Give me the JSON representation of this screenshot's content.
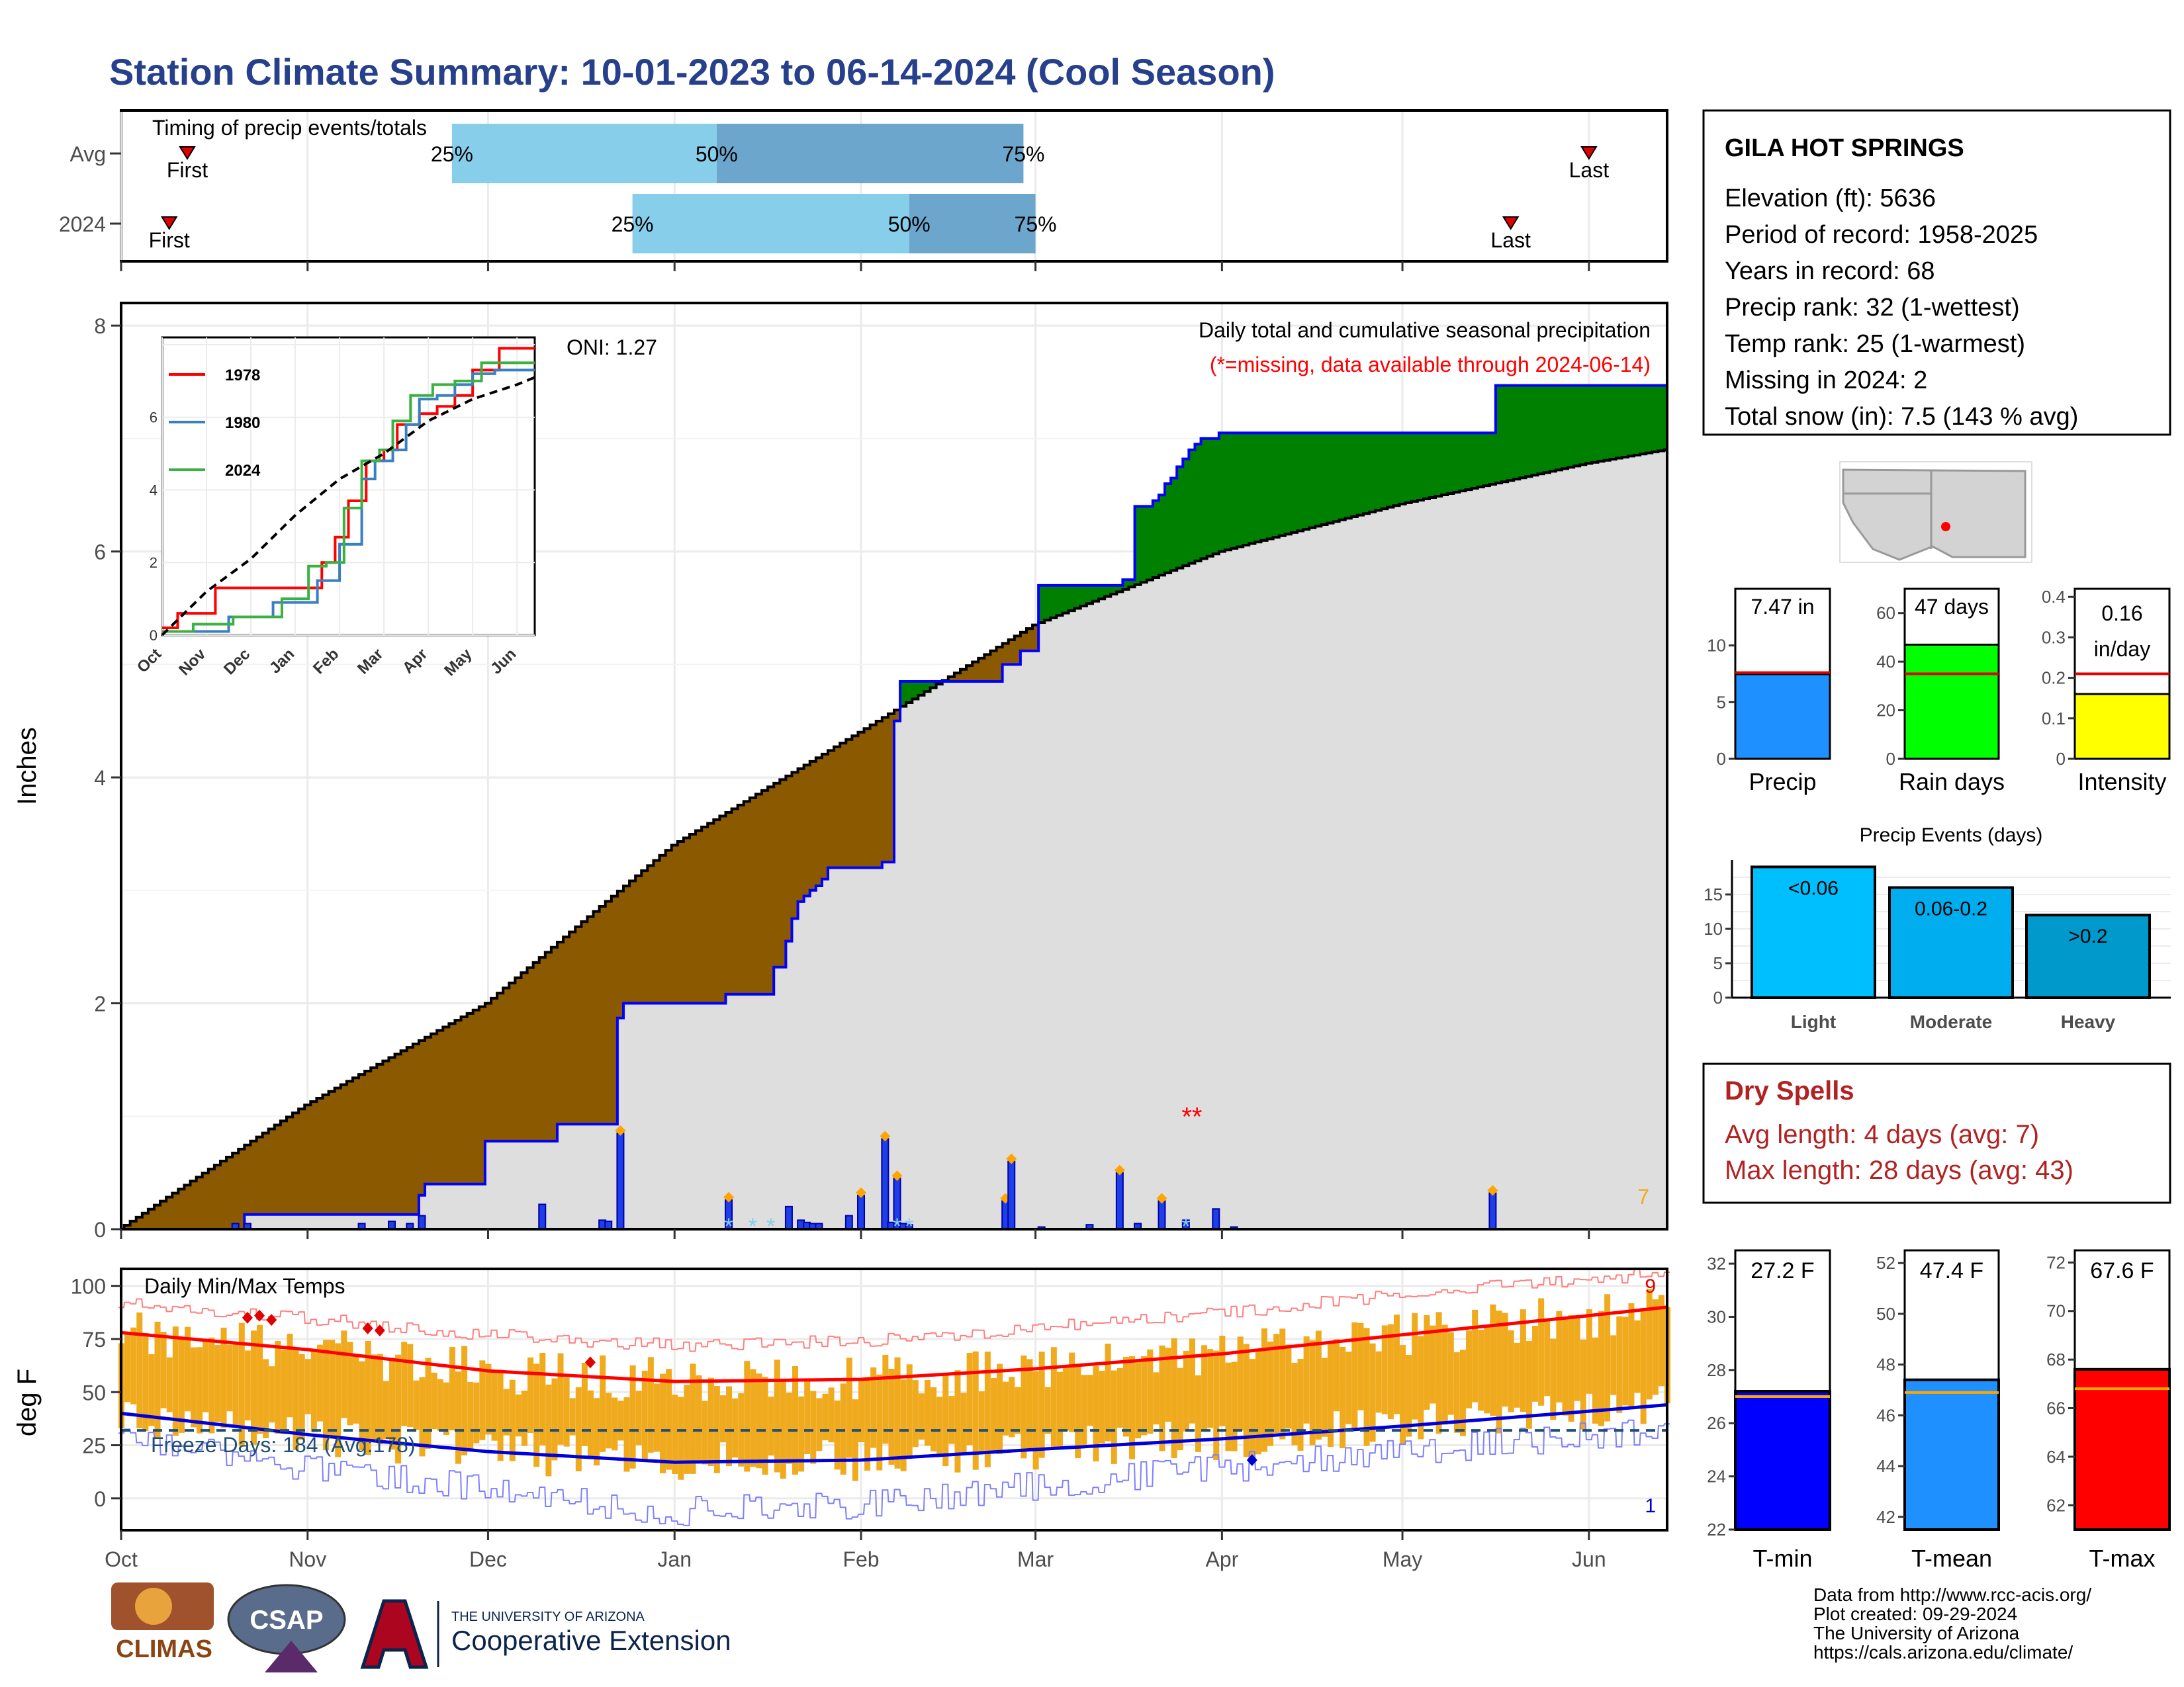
{
  "title": "Station Climate Summary: 10-01-2023 to 06-14-2024 (Cool Season)",
  "colors": {
    "title": "#27408B",
    "wet_fill": "#008000",
    "dry_fill": "#8B5A00",
    "climo_fill": "#DEDEDE",
    "daily_bar": "#1E3FE6",
    "temp_bar": "#F0AA1E",
    "tmax_line": "#FF0000",
    "tmin_line": "#0000DD",
    "dry_spells": "#B22222"
  },
  "timing_panel": {
    "title": "Timing of precip events/totals",
    "rows": [
      "Avg",
      "2024"
    ],
    "first_label": "First",
    "last_label": "Last",
    "pct_labels": [
      "25%",
      "50%",
      "75%"
    ],
    "markers": {
      "Avg": {
        "first": "2023-10-12",
        "p25": "2023-11-25",
        "p50": "2024-01-08",
        "p75": "2024-02-28",
        "last": "2024-06-01"
      },
      "2024": {
        "first": "2023-10-09",
        "p25": "2023-12-25",
        "p50": "2024-02-09",
        "p75": "2024-03-01",
        "last": "2024-05-19"
      }
    }
  },
  "main_panel": {
    "ylabel": "Inches",
    "caption": "Daily total and cumulative seasonal precipitation",
    "missing_note": "(*=missing, data available through 2024-06-14)",
    "oni": "ONI: 1.27",
    "corner_count": "7",
    "month_labels": [
      "Oct",
      "Nov",
      "Dec",
      "Jan",
      "Feb",
      "Mar",
      "Apr",
      "May",
      "Jun"
    ]
  },
  "inset": {
    "legend": [
      "1978",
      "1980",
      "2024"
    ],
    "series_colors": [
      "#FF0000",
      "#3A7FC1",
      "#3CB043"
    ],
    "month_labels": [
      "Oct",
      "Nov",
      "Dec",
      "Jan",
      "Feb",
      "Mar",
      "Apr",
      "May",
      "Jun"
    ]
  },
  "temp_panel": {
    "title": "Daily Min/Max Temps",
    "ylabel": "deg F",
    "freeze_text": "Freeze Days: 184 (Avg:178)",
    "corner_top": "9",
    "corner_bottom": "1"
  },
  "station": {
    "name": "GILA HOT SPRINGS",
    "lines": [
      "Elevation (ft): 5636",
      "Period of record: 1958-2025",
      "Years in record: 68",
      "Precip rank: 32 (1-wettest)",
      "Temp rank: 25 (1-warmest)",
      "Missing in 2024: 2",
      "Total snow (in): 7.5 (143 % avg)"
    ]
  },
  "mini_bars": [
    {
      "label": "Precip",
      "value_text": "7.47 in",
      "value": 7.47,
      "avg": 7.6,
      "ymax": 15,
      "ticks": [
        0,
        5,
        10
      ],
      "color": "#1E90FF"
    },
    {
      "label": "Rain days",
      "value_text": "47 days",
      "value": 47,
      "avg": 35,
      "ymax": 70,
      "ticks": [
        0,
        20,
        40,
        60
      ],
      "color": "#00FF00"
    },
    {
      "label": "Intensity",
      "value_text": "0.16 in/day",
      "value_line1": "0.16",
      "value_line2": "in/day",
      "value": 0.16,
      "avg": 0.21,
      "ymax": 0.42,
      "ticks": [
        0.0,
        0.1,
        0.2,
        0.3,
        0.4
      ],
      "color": "#FFFF00"
    }
  ],
  "precip_events": {
    "title": "Precip Events (days)",
    "categories": [
      "Light",
      "Moderate",
      "Heavy"
    ],
    "bar_labels": [
      "<0.06",
      "0.06-0.2",
      ">0.2"
    ],
    "values": [
      19,
      16,
      12
    ],
    "ticks": [
      0,
      5,
      10,
      15
    ],
    "colors": [
      "#00BFFF",
      "#00AEEF",
      "#0099CC"
    ]
  },
  "dry_spells": {
    "title": "Dry Spells",
    "avg_line": "Avg length: 4 days (avg: 7)",
    "max_line": "Max length: 28 days (avg: 43)"
  },
  "temp_bars": [
    {
      "label": "T-min",
      "value_text": "27.2 F",
      "value": 27.2,
      "avg": 27.0,
      "ymin": 22,
      "ymax": 32.5,
      "ticks": [
        22,
        24,
        26,
        28,
        30,
        32
      ],
      "color": "#0000FF"
    },
    {
      "label": "T-mean",
      "value_text": "47.4 F",
      "value": 47.4,
      "avg": 46.9,
      "ymin": 41.5,
      "ymax": 52.5,
      "ticks": [
        42,
        44,
        46,
        48,
        50,
        52
      ],
      "color": "#1E90FF"
    },
    {
      "label": "T-max",
      "value_text": "67.6 F",
      "value": 67.6,
      "avg": 66.8,
      "ymin": 61,
      "ymax": 72.5,
      "ticks": [
        62,
        64,
        66,
        68,
        70,
        72
      ],
      "color": "#FF0000"
    }
  ],
  "footer": {
    "lines": [
      "Data from http://www.rcc-acis.org/",
      "Plot created: 09-29-2024",
      "The University of Arizona",
      "https://cals.arizona.edu/climate/"
    ],
    "logo_climas": "CLIMAS",
    "logo_csap": "CSAP",
    "ua_small": "THE UNIVERSITY OF ARIZONA",
    "ua_big": "Cooperative Extension"
  },
  "chart_data": {
    "type": "area",
    "title": "Daily total and cumulative seasonal precipitation",
    "ylabel": "Inches",
    "ylim": [
      0,
      8.2
    ],
    "x_range": [
      "2023-10-01",
      "2024-06-14"
    ],
    "cumulative_2024": {
      "x": [
        "2023-10-01",
        "2023-10-22",
        "2023-11-20",
        "2023-11-21",
        "2023-12-01",
        "2023-12-13",
        "2023-12-23",
        "2023-12-24",
        "2024-01-10",
        "2024-01-18",
        "2024-01-20",
        "2024-01-21",
        "2024-01-22",
        "2024-01-23",
        "2024-01-24",
        "2024-01-25",
        "2024-01-26",
        "2024-01-27",
        "2024-02-05",
        "2024-02-07",
        "2024-02-08",
        "2024-02-25",
        "2024-02-28",
        "2024-03-02",
        "2024-03-16",
        "2024-03-18",
        "2024-03-21",
        "2024-03-22",
        "2024-03-23",
        "2024-03-24",
        "2024-03-25",
        "2024-03-26",
        "2024-03-27",
        "2024-03-28",
        "2024-03-29",
        "2024-04-01",
        "2024-05-17",
        "2024-06-14"
      ],
      "y": [
        0,
        0.13,
        0.3,
        0.4,
        0.78,
        0.93,
        1.87,
        2.0,
        2.08,
        2.32,
        2.55,
        2.75,
        2.9,
        2.95,
        3.0,
        3.04,
        3.1,
        3.2,
        3.25,
        4.5,
        4.85,
        5.0,
        5.12,
        5.7,
        5.75,
        6.4,
        6.45,
        6.5,
        6.6,
        6.65,
        6.75,
        6.82,
        6.9,
        6.95,
        7.0,
        7.05,
        7.47,
        7.47
      ]
    },
    "climatology_avg": {
      "x": [
        "2023-10-01",
        "2023-11-01",
        "2023-12-01",
        "2024-01-01",
        "2024-02-01",
        "2024-03-01",
        "2024-04-01",
        "2024-05-01",
        "2024-06-01",
        "2024-06-14"
      ],
      "y": [
        0,
        1.1,
        2.0,
        3.4,
        4.4,
        5.35,
        6.0,
        6.42,
        6.78,
        6.9
      ]
    },
    "daily_precip": {
      "x": [
        "2023-10-20",
        "2023-10-22",
        "2023-11-10",
        "2023-11-15",
        "2023-11-18",
        "2023-11-20",
        "2023-12-10",
        "2023-12-20",
        "2023-12-21",
        "2023-12-23",
        "2024-01-10",
        "2024-01-20",
        "2024-01-22",
        "2024-01-23",
        "2024-01-24",
        "2024-01-25",
        "2024-01-30",
        "2024-02-01",
        "2024-02-05",
        "2024-02-06",
        "2024-02-07",
        "2024-02-08",
        "2024-02-09",
        "2024-02-25",
        "2024-02-26",
        "2024-03-02",
        "2024-03-10",
        "2024-03-15",
        "2024-03-18",
        "2024-03-22",
        "2024-03-26",
        "2024-03-31",
        "2024-04-03",
        "2024-05-16"
      ],
      "values": [
        0.05,
        0.05,
        0.05,
        0.07,
        0.05,
        0.12,
        0.22,
        0.08,
        0.07,
        0.85,
        0.26,
        0.2,
        0.08,
        0.06,
        0.05,
        0.05,
        0.12,
        0.3,
        0.8,
        0.06,
        0.45,
        0.05,
        0.04,
        0.25,
        0.6,
        0.02,
        0.04,
        0.5,
        0.05,
        0.25,
        0.08,
        0.18,
        0.02,
        0.32
      ]
    },
    "inset": {
      "xlabels": [
        "Oct",
        "Nov",
        "Dec",
        "Jan",
        "Feb",
        "Mar",
        "Apr",
        "May",
        "Jun"
      ],
      "ylim": [
        0,
        8.2
      ],
      "series": [
        {
          "name": "1978",
          "x": [
            0,
            0.35,
            1.2,
            2.4,
            3.2,
            3.6,
            3.9,
            4.2,
            4.6,
            5.0,
            5.3,
            5.8,
            6.2,
            6.6,
            7.0,
            7.6,
            8.4
          ],
          "y": [
            0.2,
            0.6,
            1.3,
            1.3,
            1.3,
            2.0,
            2.7,
            3.7,
            4.8,
            5.1,
            5.8,
            6.1,
            6.3,
            6.6,
            7.3,
            7.9,
            7.9
          ]
        },
        {
          "name": "1980",
          "x": [
            0,
            1.5,
            2.5,
            3.5,
            4.0,
            4.5,
            4.8,
            5.2,
            5.5,
            5.8,
            6.2,
            6.6,
            7.0,
            7.5,
            8.4
          ],
          "y": [
            0.1,
            0.5,
            0.9,
            1.5,
            2.5,
            4.3,
            4.8,
            5.1,
            5.8,
            6.5,
            6.6,
            6.9,
            7.2,
            7.3,
            7.3
          ]
        },
        {
          "name": "2024",
          "x": [
            0,
            0.7,
            1.6,
            2.7,
            3.3,
            3.7,
            4.1,
            4.5,
            4.9,
            5.2,
            5.6,
            6.1,
            6.6,
            7.2,
            8.4
          ],
          "y": [
            0.1,
            0.3,
            0.5,
            1.0,
            1.9,
            2.0,
            3.5,
            4.8,
            5.1,
            5.9,
            6.6,
            6.9,
            7.0,
            7.5,
            7.5
          ]
        },
        {
          "name": "Avg",
          "x": [
            0,
            1,
            2,
            3,
            4,
            5,
            6,
            7,
            8,
            8.4
          ],
          "y": [
            0,
            1.2,
            2.1,
            3.3,
            4.3,
            5.0,
            5.9,
            6.5,
            6.9,
            7.1
          ]
        }
      ]
    },
    "temps": {
      "ylim": [
        -15,
        108
      ],
      "freeze_line": 32,
      "tmax_avg": {
        "x": [
          "2023-10-01",
          "2023-11-01",
          "2023-12-01",
          "2024-01-01",
          "2024-02-01",
          "2024-03-01",
          "2024-04-01",
          "2024-05-01",
          "2024-06-01",
          "2024-06-14"
        ],
        "y": [
          78,
          70,
          60,
          55,
          56,
          61,
          68,
          77,
          86,
          90
        ]
      },
      "tmin_avg": {
        "x": [
          "2023-10-01",
          "2023-11-01",
          "2023-12-01",
          "2024-01-01",
          "2024-02-01",
          "2024-03-01",
          "2024-04-01",
          "2024-05-01",
          "2024-06-01",
          "2024-06-14"
        ],
        "y": [
          40,
          30,
          22,
          17,
          18,
          23,
          28,
          34,
          41,
          44
        ]
      },
      "record_high": {
        "x": [
          "2023-10-01",
          "2023-11-01",
          "2023-12-01",
          "2024-01-01",
          "2024-02-01",
          "2024-03-01",
          "2024-04-01",
          "2024-05-01",
          "2024-06-01",
          "2024-06-14"
        ],
        "y": [
          92,
          85,
          77,
          72,
          74,
          80,
          87,
          96,
          103,
          106
        ]
      },
      "record_low": {
        "x": [
          "2023-10-01",
          "2023-11-01",
          "2023-12-01",
          "2024-01-01",
          "2024-02-01",
          "2024-03-01",
          "2024-04-01",
          "2024-05-01",
          "2024-06-01",
          "2024-06-14"
        ],
        "y": [
          28,
          14,
          4,
          -6,
          -3,
          6,
          14,
          22,
          30,
          33
        ]
      }
    }
  }
}
